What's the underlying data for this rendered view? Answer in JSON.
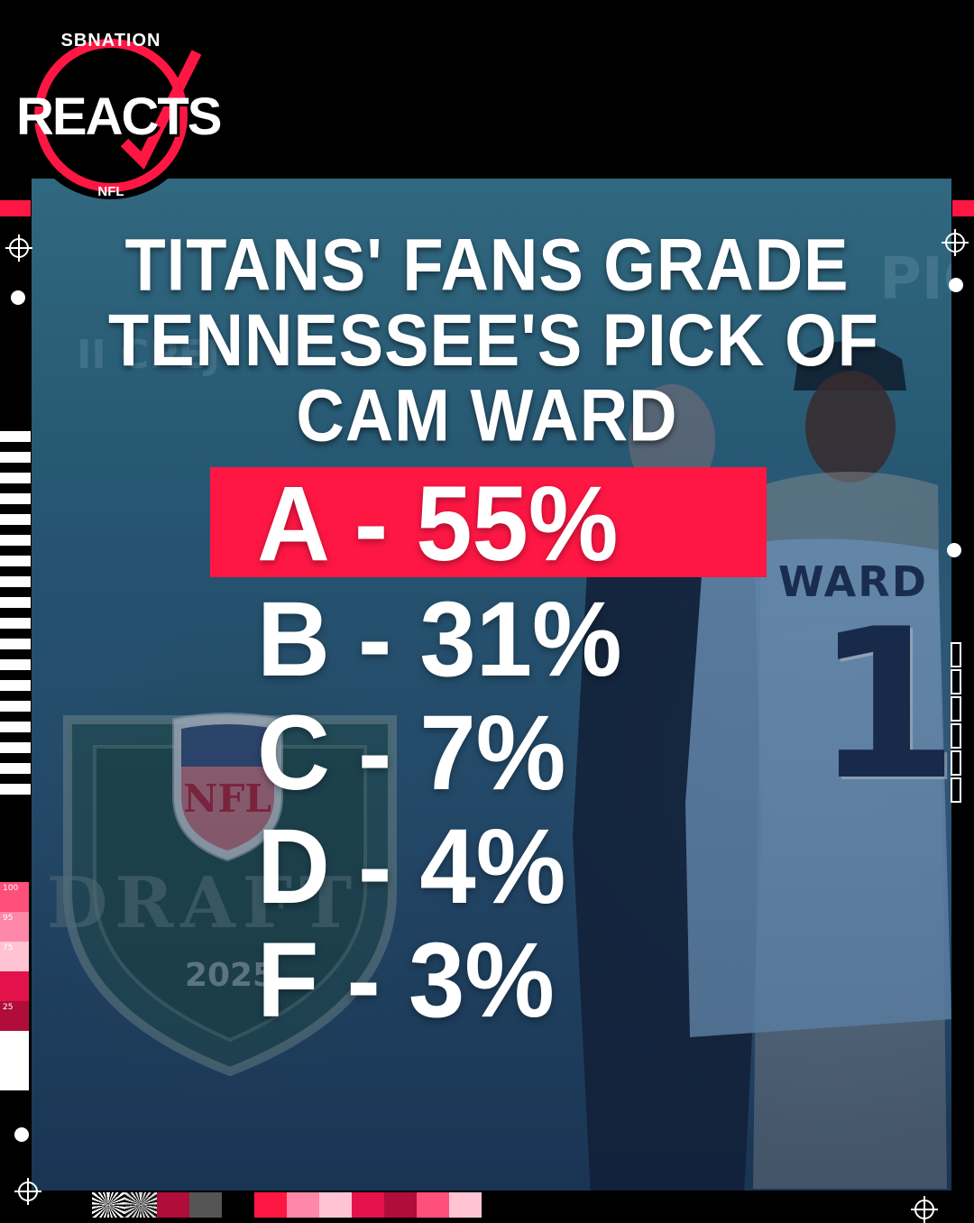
{
  "brand": {
    "network": "SBNATION",
    "name": "REACTS",
    "league": "NFL",
    "accent_color": "#ff1744"
  },
  "headline": {
    "line1": "TITANS' FANS GRADE",
    "line2": "TENNESSEE'S PICK OF",
    "line3": "CAM WARD"
  },
  "results": [
    {
      "label": "A - 55%",
      "grade": "A",
      "percent": 55,
      "highlighted": true
    },
    {
      "label": "B - 31%",
      "grade": "B",
      "percent": 31,
      "highlighted": false
    },
    {
      "label": "C - 7%",
      "grade": "C",
      "percent": 7,
      "highlighted": false
    },
    {
      "label": "D - 4%",
      "grade": "D",
      "percent": 4,
      "highlighted": false
    },
    {
      "label": "F  - 3%",
      "grade": "F",
      "percent": 3,
      "highlighted": false
    }
  ],
  "photo": {
    "jersey_name": "WARD",
    "jersey_number": "1",
    "shield_text": "NFL",
    "shield_word": "DRAFT",
    "shield_year": "2025",
    "bg_text": "II CPEJ",
    "bg_text_right": "PIC"
  },
  "decor": {
    "heat_labels": [
      "100",
      "95",
      "75",
      "25"
    ]
  }
}
